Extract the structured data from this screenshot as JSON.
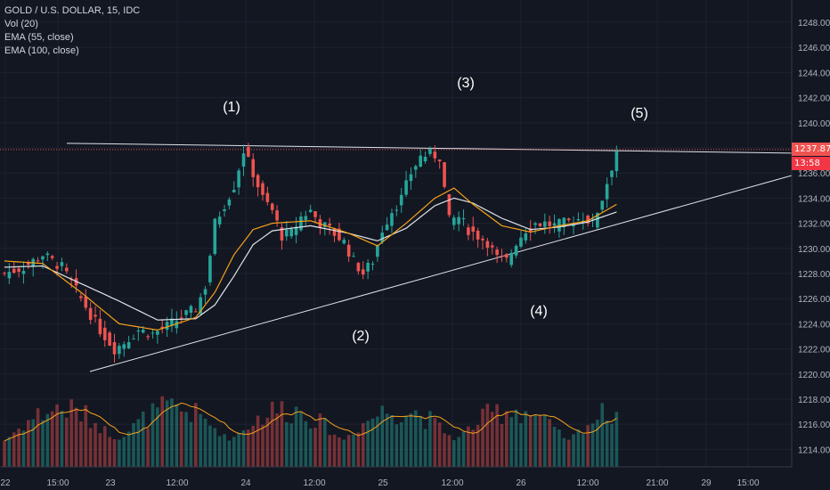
{
  "legend": {
    "symbol": "GOLD / U.S. DOLLAR, 15, IDC",
    "volume": "Vol (20)",
    "ema1": "EMA (55, close)",
    "ema2": "EMA (100, close)"
  },
  "price_scale": {
    "ticks": [
      "1248.00",
      "1246.00",
      "1244.00",
      "1242.00",
      "1240.00",
      "1238.00",
      "1236.00",
      "1234.00",
      "1232.00",
      "1230.00",
      "1228.00",
      "1226.00",
      "1224.00",
      "1222.00",
      "1220.00",
      "1218.00",
      "1216.00",
      "1214.00"
    ],
    "current_price": "1237.87",
    "countdown": "13:58"
  },
  "time_axis": {
    "ticks": [
      "22",
      "15:00",
      "23",
      "12:00",
      "24",
      "12:00",
      "25",
      "12:00",
      "26",
      "12:00",
      "21:00",
      "29",
      "15:00"
    ]
  },
  "annotations": [
    "(1)",
    "(2)",
    "(3)",
    "(4)",
    "(5)"
  ],
  "colors": {
    "background": "#131722",
    "bull": "#26a69a",
    "bear": "#ef5350",
    "ema55": "#f7a21b",
    "ema100": "#e0e3eb",
    "price_label": "#ef5350",
    "countdown_label": "#f23645"
  },
  "chart_data": {
    "type": "candlestick",
    "y_range": [
      1213,
      1249.5
    ],
    "resistance_level": 1237.87,
    "support_trendline": {
      "from_price": 1220.2,
      "to_price": 1235.8
    },
    "price_path": [
      [
        0,
        1228
      ],
      [
        4,
        1228.5
      ],
      [
        8,
        1229.5
      ],
      [
        12,
        1228.5
      ],
      [
        16,
        1226
      ],
      [
        20,
        1223.5
      ],
      [
        23,
        1222
      ],
      [
        25,
        1222.5
      ],
      [
        28,
        1223.5
      ],
      [
        31,
        1223.2
      ],
      [
        34,
        1223.8
      ],
      [
        37,
        1224.5
      ],
      [
        40,
        1225.2
      ],
      [
        42,
        1227
      ],
      [
        44,
        1232
      ],
      [
        46,
        1233.5
      ],
      [
        48,
        1235
      ],
      [
        50,
        1237.8
      ],
      [
        52,
        1236
      ],
      [
        54,
        1234
      ],
      [
        56,
        1233
      ],
      [
        58,
        1231
      ],
      [
        60,
        1231.2
      ],
      [
        62,
        1232.5
      ],
      [
        64,
        1233
      ],
      [
        66,
        1232
      ],
      [
        68,
        1231.5
      ],
      [
        71,
        1230.5
      ],
      [
        73,
        1229
      ],
      [
        75,
        1228
      ],
      [
        77,
        1229
      ],
      [
        79,
        1231.5
      ],
      [
        81,
        1233
      ],
      [
        83,
        1234
      ],
      [
        85,
        1236
      ],
      [
        87,
        1237.3
      ],
      [
        89,
        1237.5
      ],
      [
        91,
        1237.3
      ],
      [
        93,
        1232.2
      ],
      [
        95,
        1232.5
      ],
      [
        97,
        1231.5
      ],
      [
        99,
        1231
      ],
      [
        101,
        1230.5
      ],
      [
        103,
        1229.2
      ],
      [
        105,
        1229
      ],
      [
        107,
        1230.5
      ],
      [
        109,
        1231.5
      ],
      [
        111,
        1232
      ],
      [
        113,
        1232
      ],
      [
        115,
        1231.8
      ],
      [
        117,
        1232
      ],
      [
        119,
        1232.2
      ],
      [
        121,
        1232.5
      ],
      [
        123,
        1232
      ],
      [
        125,
        1234
      ],
      [
        127,
        1236.5
      ],
      [
        128,
        1237.8
      ]
    ],
    "ema55_path": [
      [
        0,
        1229
      ],
      [
        8,
        1228.8
      ],
      [
        16,
        1226.5
      ],
      [
        24,
        1224
      ],
      [
        32,
        1223.5
      ],
      [
        40,
        1224.5
      ],
      [
        44,
        1226.5
      ],
      [
        48,
        1229.5
      ],
      [
        52,
        1231.5
      ],
      [
        56,
        1232
      ],
      [
        64,
        1232.2
      ],
      [
        72,
        1231.2
      ],
      [
        78,
        1230.2
      ],
      [
        84,
        1232
      ],
      [
        90,
        1234
      ],
      [
        94,
        1234.8
      ],
      [
        98,
        1233.5
      ],
      [
        104,
        1231.8
      ],
      [
        110,
        1231.3
      ],
      [
        116,
        1231.8
      ],
      [
        122,
        1232.2
      ],
      [
        128,
        1233.5
      ]
    ],
    "ema100_path": [
      [
        0,
        1228.5
      ],
      [
        8,
        1228.6
      ],
      [
        16,
        1227.2
      ],
      [
        24,
        1225.8
      ],
      [
        32,
        1224.3
      ],
      [
        40,
        1224.4
      ],
      [
        44,
        1225.5
      ],
      [
        48,
        1227.8
      ],
      [
        52,
        1230.3
      ],
      [
        56,
        1231.4
      ],
      [
        64,
        1231.8
      ],
      [
        72,
        1231.2
      ],
      [
        78,
        1230.6
      ],
      [
        84,
        1231.6
      ],
      [
        90,
        1233.4
      ],
      [
        94,
        1234
      ],
      [
        98,
        1233.6
      ],
      [
        104,
        1232.4
      ],
      [
        110,
        1231.5
      ],
      [
        116,
        1231.7
      ],
      [
        122,
        1232.1
      ],
      [
        128,
        1232.9
      ]
    ]
  }
}
